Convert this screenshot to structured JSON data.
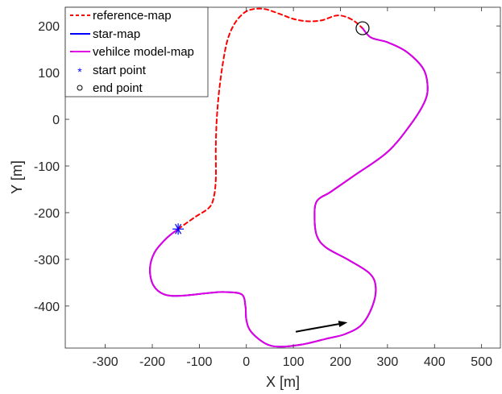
{
  "chart_data": {
    "type": "line",
    "title": "",
    "xlabel": "X [m]",
    "ylabel": "Y [m]",
    "xlim": [
      -385,
      540
    ],
    "ylim": [
      -490,
      240
    ],
    "xticks": [
      -300,
      -200,
      -100,
      0,
      100,
      200,
      300,
      400,
      500
    ],
    "yticks": [
      200,
      100,
      0,
      -100,
      -200,
      -300,
      -400
    ],
    "xtick_labels": [
      "-300",
      "-200",
      "-100",
      "0",
      "100",
      "200",
      "300",
      "400",
      "500"
    ],
    "ytick_labels": [
      "200",
      "100",
      "0",
      "-100",
      "-200",
      "-300",
      "-400"
    ],
    "grid": false,
    "legend_position": "top-left",
    "series": [
      {
        "name": "reference-map",
        "style": "dashed",
        "color": "#ff0000",
        "x": [
          -145,
          -110,
          -80,
          -70,
          -65,
          -65,
          -63,
          -58,
          -50,
          -40,
          -25,
          -5,
          15,
          40,
          70,
          100,
          130,
          160,
          190,
          210,
          230,
          247
        ],
        "y": [
          -235,
          -210,
          -190,
          -170,
          -130,
          -60,
          0,
          60,
          120,
          170,
          205,
          228,
          236,
          236,
          226,
          215,
          210,
          212,
          222,
          220,
          210,
          195
        ]
      },
      {
        "name": "star-map",
        "style": "solid",
        "color": "#0000ff",
        "x": [
          -145,
          -170,
          -195,
          -205,
          -198,
          -175,
          -140,
          -80,
          -45,
          -10,
          -2,
          0,
          10,
          40,
          70,
          120,
          170,
          210,
          245,
          268,
          275,
          262,
          215,
          170,
          150,
          145,
          150,
          180,
          230,
          300,
          350,
          380,
          385,
          375,
          340,
          300,
          265,
          247
        ],
        "y": [
          -235,
          -255,
          -285,
          -320,
          -355,
          -375,
          -378,
          -372,
          -370,
          -375,
          -400,
          -430,
          -455,
          -480,
          -487,
          -482,
          -470,
          -460,
          -440,
          -400,
          -360,
          -330,
          -300,
          -275,
          -250,
          -210,
          -175,
          -155,
          -120,
          -70,
          -10,
          40,
          75,
          110,
          145,
          165,
          175,
          195
        ]
      },
      {
        "name": "vehilce model-map",
        "style": "solid",
        "color": "#e000e0",
        "x": [
          -145,
          -170,
          -195,
          -205,
          -198,
          -175,
          -140,
          -80,
          -45,
          -10,
          -2,
          0,
          10,
          40,
          70,
          120,
          170,
          210,
          245,
          268,
          275,
          262,
          215,
          170,
          150,
          145,
          150,
          180,
          230,
          300,
          350,
          380,
          385,
          375,
          340,
          300,
          265,
          247
        ],
        "y": [
          -235,
          -255,
          -285,
          -320,
          -355,
          -375,
          -378,
          -372,
          -370,
          -375,
          -400,
          -430,
          -455,
          -480,
          -487,
          -482,
          -470,
          -460,
          -440,
          -400,
          -360,
          -330,
          -300,
          -275,
          -250,
          -210,
          -175,
          -155,
          -120,
          -70,
          -10,
          40,
          75,
          110,
          145,
          165,
          175,
          195
        ]
      },
      {
        "name": "start point",
        "marker": "asterisk",
        "color": "#0000ff",
        "x": [
          -145
        ],
        "y": [
          -235
        ]
      },
      {
        "name": "end point",
        "marker": "circle",
        "color": "#000000",
        "x": [
          247
        ],
        "y": [
          195
        ]
      }
    ],
    "annotations": [
      {
        "type": "arrow",
        "color": "#000000",
        "from": [
          105,
          -455
        ],
        "to": [
          215,
          -435
        ]
      }
    ]
  }
}
